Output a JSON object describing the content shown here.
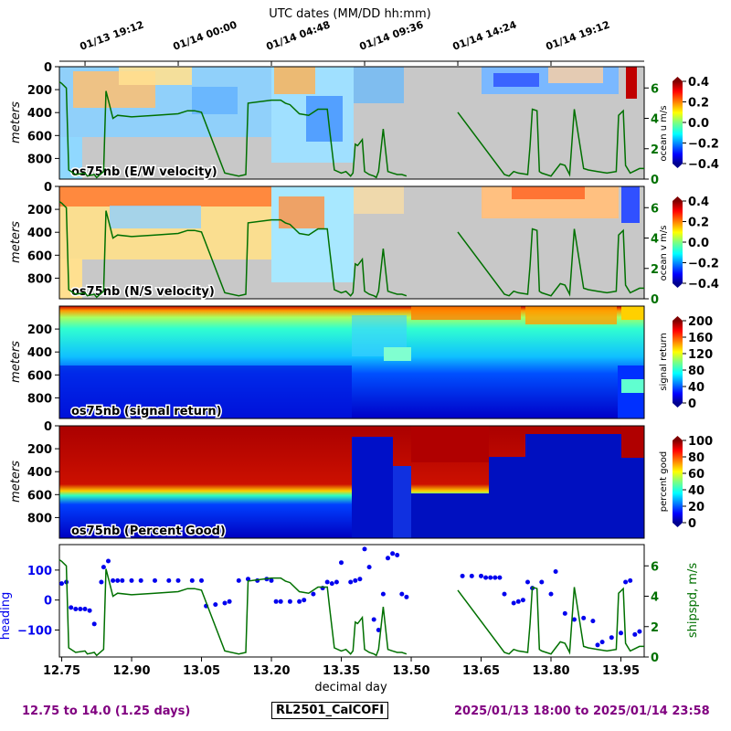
{
  "top_axis": {
    "title": "UTC dates (MM/DD hh:mm)",
    "tick_labels": [
      "01/13 19:12",
      "01/14 00:00",
      "01/14 04:48",
      "01/14 09:36",
      "01/14 14:24",
      "01/14 19:12"
    ],
    "tick_values": [
      12.8,
      13.0,
      13.2,
      13.4,
      13.6,
      13.8
    ]
  },
  "colors": {
    "ship_speed": "#007000",
    "heading": "#0000ee",
    "missing": "#c8c8c8",
    "footer": "#800080"
  },
  "chart_data": [
    {
      "type": "heatmap",
      "panel": "os75nb (E/W velocity)",
      "ylabel": "meters",
      "ylim": [
        980,
        0
      ],
      "yticks": [
        0,
        200,
        400,
        600,
        800
      ],
      "xlim": [
        12.745,
        14.0
      ],
      "colorbar": {
        "label": "ocean u m/s",
        "range": [
          -0.4,
          0.4
        ],
        "ticks": [
          "0.4",
          "0.2",
          "0.0",
          "−0.2",
          "−0.4"
        ],
        "colormap": "jet"
      },
      "right_axis": {
        "ticks": [
          "6",
          "4",
          "2",
          "0"
        ],
        "color": "#007000"
      }
    },
    {
      "type": "heatmap",
      "panel": "os75nb (N/S velocity)",
      "ylabel": "meters",
      "ylim": [
        980,
        0
      ],
      "yticks": [
        0,
        200,
        400,
        600,
        800
      ],
      "xlim": [
        12.745,
        14.0
      ],
      "colorbar": {
        "label": "ocean v m/s",
        "range": [
          -0.4,
          0.4
        ],
        "ticks": [
          "0.4",
          "0.2",
          "0.0",
          "−0.2",
          "−0.4"
        ],
        "colormap": "jet"
      },
      "right_axis": {
        "ticks": [
          "6",
          "4",
          "2",
          "0"
        ],
        "color": "#007000"
      }
    },
    {
      "type": "heatmap",
      "panel": "os75nb (signal return)",
      "ylabel": "meters",
      "ylim": [
        980,
        0
      ],
      "yticks": [
        200,
        400,
        600,
        800
      ],
      "xlim": [
        12.745,
        14.0
      ],
      "colorbar": {
        "label": "signal return",
        "range": [
          0,
          200
        ],
        "ticks": [
          "200",
          "160",
          "120",
          "80",
          "40",
          "0"
        ],
        "colormap": "jet"
      }
    },
    {
      "type": "heatmap",
      "panel": "os75nb (Percent Good)",
      "ylabel": "meters",
      "ylim": [
        980,
        0
      ],
      "yticks": [
        0,
        200,
        400,
        600,
        800
      ],
      "xlim": [
        12.745,
        14.0
      ],
      "colorbar": {
        "label": "percent good",
        "range": [
          0,
          100
        ],
        "ticks": [
          "100",
          "80",
          "60",
          "40",
          "20",
          "0"
        ],
        "colormap": "jet"
      }
    },
    {
      "type": "scatter",
      "title": "",
      "xlabel": "decimal day",
      "ylabel": "heading",
      "ylabel_right": "shipspd, m/s",
      "xlim": [
        12.745,
        14.0
      ],
      "ylim": [
        -190,
        185
      ],
      "ylim_right": [
        0,
        7.4
      ],
      "x_ticks": [
        12.75,
        12.9,
        13.05,
        13.2,
        13.35,
        13.5,
        13.65,
        13.8,
        13.95
      ],
      "x_tick_labels": [
        "12.75",
        "12.90",
        "13.05",
        "13.20",
        "13.35",
        "13.50",
        "13.65",
        "13.80",
        "13.95"
      ],
      "y_ticks": [
        100,
        0,
        -100
      ],
      "y_tick_labels": [
        "100",
        "0",
        "−100"
      ],
      "y_ticks_right": [
        6,
        4,
        2,
        0
      ],
      "y_tick_labels_right": [
        "6",
        "4",
        "2",
        "0"
      ],
      "series": [
        {
          "name": "heading",
          "style": "points",
          "x": [
            12.75,
            12.76,
            12.77,
            12.78,
            12.79,
            12.8,
            12.81,
            12.82,
            12.835,
            12.84,
            12.85,
            12.86,
            12.87,
            12.88,
            12.9,
            12.92,
            12.95,
            12.98,
            13.0,
            13.03,
            13.05,
            13.06,
            13.08,
            13.1,
            13.11,
            13.13,
            13.15,
            13.17,
            13.19,
            13.2,
            13.21,
            13.22,
            13.24,
            13.26,
            13.27,
            13.29,
            13.31,
            13.32,
            13.33,
            13.34,
            13.35,
            13.37,
            13.38,
            13.39,
            13.4,
            13.41,
            13.42,
            13.43,
            13.44,
            13.45,
            13.46,
            13.47,
            13.48,
            13.49,
            13.61,
            13.63,
            13.65,
            13.66,
            13.67,
            13.68,
            13.69,
            13.7,
            13.72,
            13.73,
            13.74,
            13.75,
            13.76,
            13.78,
            13.8,
            13.81,
            13.83,
            13.85,
            13.87,
            13.89,
            13.9,
            13.91,
            13.93,
            13.95,
            13.96,
            13.97,
            13.98,
            13.99
          ],
          "y": [
            55,
            60,
            -25,
            -30,
            -30,
            -30,
            -35,
            -80,
            60,
            110,
            130,
            65,
            65,
            65,
            65,
            65,
            65,
            65,
            65,
            65,
            65,
            -20,
            -15,
            -10,
            -5,
            65,
            70,
            65,
            70,
            65,
            -5,
            -5,
            -5,
            -5,
            0,
            20,
            40,
            60,
            55,
            60,
            125,
            60,
            65,
            70,
            170,
            110,
            -65,
            -100,
            20,
            140,
            155,
            150,
            20,
            10,
            80,
            80,
            80,
            75,
            75,
            75,
            75,
            20,
            -10,
            -5,
            0,
            60,
            40,
            60,
            20,
            95,
            -45,
            -65,
            -60,
            -70,
            -150,
            -140,
            -125,
            -110,
            60,
            65,
            -115,
            -105
          ]
        },
        {
          "name": "shipspd, m/s",
          "style": "line",
          "x": [
            12.745,
            12.75,
            12.76,
            12.765,
            12.78,
            12.8,
            12.805,
            12.82,
            12.825,
            12.84,
            12.845,
            12.86,
            12.87,
            12.9,
            12.95,
            13.0,
            13.02,
            13.035,
            13.05,
            13.1,
            13.13,
            13.145,
            13.15,
            13.2,
            13.22,
            13.23,
            13.24,
            13.26,
            13.28,
            13.3,
            13.32,
            13.325,
            13.335,
            13.35,
            13.36,
            13.37,
            13.375,
            13.38,
            13.385,
            13.395,
            13.4,
            13.41,
            13.42,
            13.425,
            13.43,
            13.44,
            13.45,
            13.46,
            13.47,
            13.48,
            13.49
          ],
          "y": [
            6.4,
            6.3,
            6.0,
            0.6,
            0.3,
            0.4,
            0.2,
            0.3,
            0.1,
            0.5,
            5.8,
            4.0,
            4.2,
            4.1,
            4.2,
            4.3,
            4.5,
            4.5,
            4.4,
            0.4,
            0.2,
            0.3,
            5.0,
            5.2,
            5.2,
            5.0,
            4.9,
            4.3,
            4.2,
            4.6,
            4.6,
            3.2,
            0.6,
            0.4,
            0.5,
            0.2,
            0.4,
            2.3,
            2.2,
            2.6,
            0.5,
            0.3,
            0.2,
            0.1,
            0.5,
            3.3,
            0.5,
            0.4,
            0.3,
            0.3,
            0.2
          ]
        },
        {
          "name": "shipspd, m/s",
          "style": "line",
          "x": [
            13.6,
            13.7,
            13.71,
            13.72,
            13.73,
            13.75,
            13.755,
            13.76,
            13.77,
            13.775,
            13.78,
            13.8,
            13.81,
            13.82,
            13.83,
            13.84,
            13.85,
            13.87,
            13.88,
            13.9,
            13.92,
            13.94,
            13.945,
            13.955,
            13.96,
            13.97,
            13.99,
            14.0
          ],
          "y": [
            4.4,
            0.3,
            0.2,
            0.5,
            0.4,
            0.3,
            2.2,
            4.6,
            4.5,
            0.5,
            0.4,
            0.2,
            0.6,
            1.0,
            0.9,
            0.3,
            4.6,
            0.7,
            0.6,
            0.5,
            0.4,
            0.5,
            4.2,
            4.5,
            0.9,
            0.4,
            0.7,
            0.7
          ]
        }
      ]
    }
  ],
  "footer": {
    "left": "12.75 to 14.0 (1.25 days)",
    "middle": "RL2501_CalCOFI",
    "right": "2025/01/13 18:00 to 2025/01/14 23:58"
  }
}
